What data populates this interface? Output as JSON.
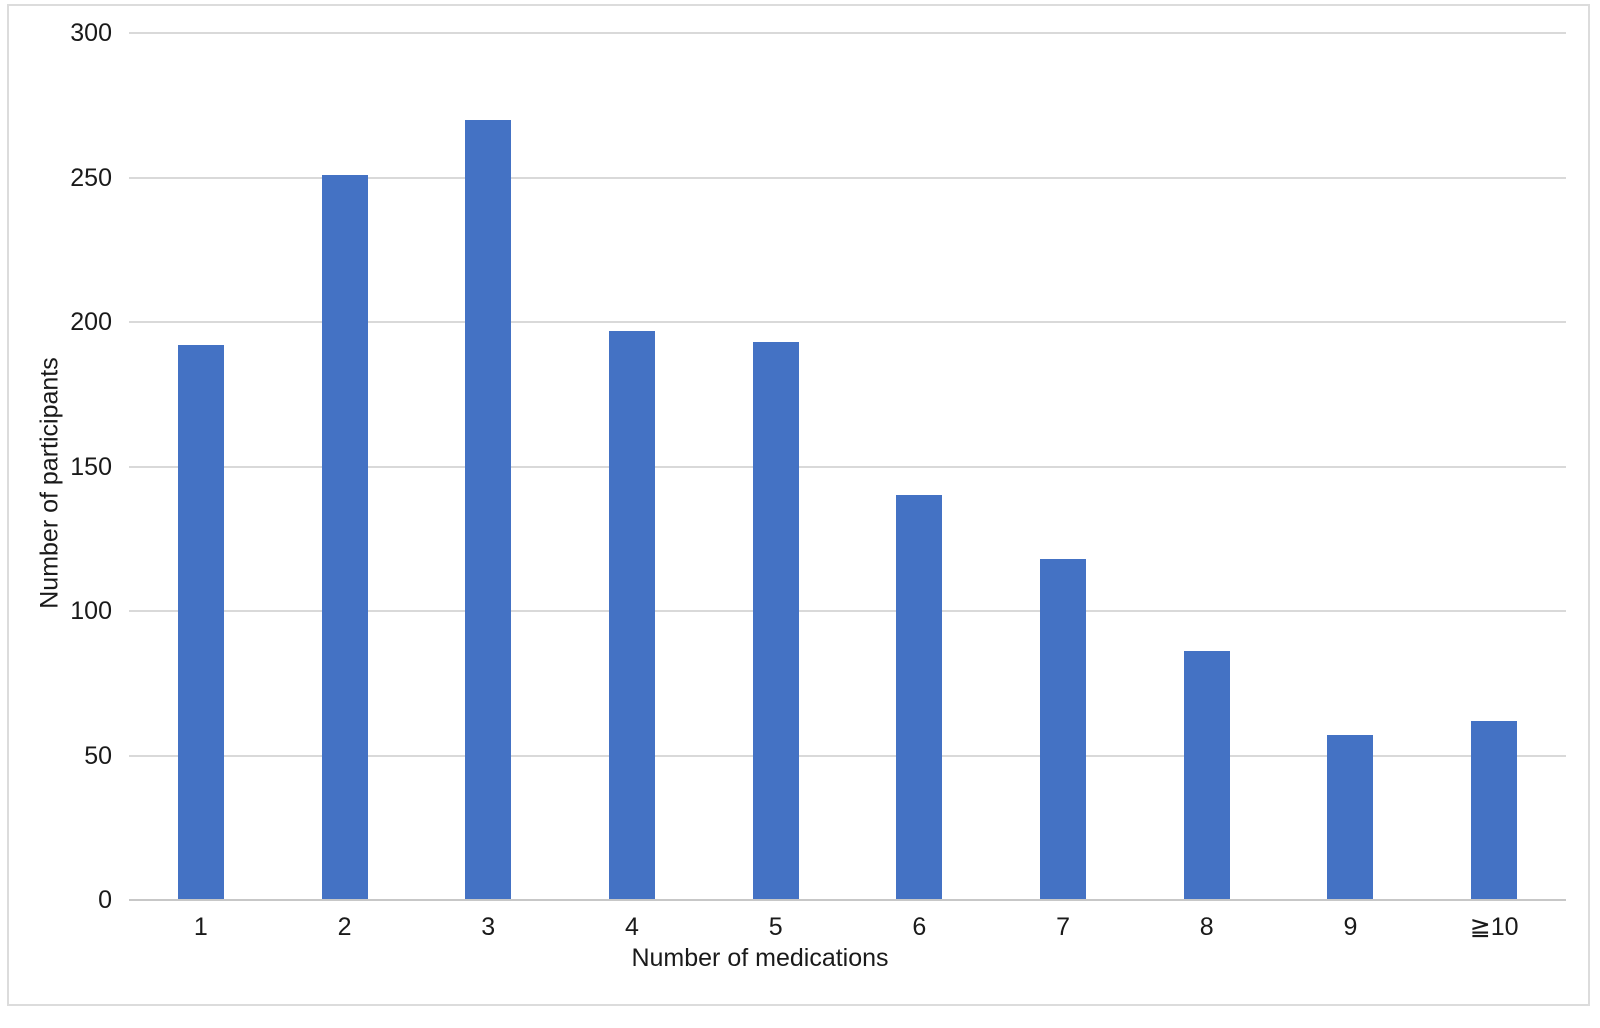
{
  "figure": {
    "background_color": "#ffffff",
    "border_color": "#dcdcdc"
  },
  "chart_data": {
    "type": "bar",
    "title": "",
    "categories": [
      "1",
      "2",
      "3",
      "4",
      "5",
      "6",
      "7",
      "8",
      "9",
      "≧10"
    ],
    "values": [
      192,
      251,
      270,
      197,
      193,
      140,
      118,
      86,
      57,
      62
    ],
    "xlabel": "Number of medications",
    "ylabel": "Number of participants",
    "y_ticks": [
      0,
      50,
      100,
      150,
      200,
      250,
      300
    ],
    "ylim": [
      0,
      300
    ],
    "bar_color": "#4472C4",
    "gridline_color": "#d9d9d9",
    "axis_line_color": "#c7c7c7",
    "text_color": "#1a1a1a",
    "grid": "horizontal gridlines on",
    "legend": "none"
  }
}
